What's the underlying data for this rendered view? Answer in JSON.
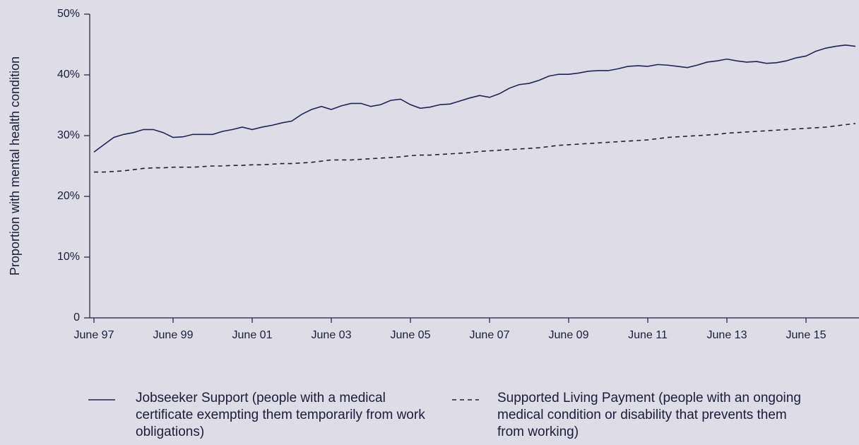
{
  "chart_data": {
    "type": "line",
    "y_label": "Proportion with mental health condition",
    "categories": [
      "June 97",
      null,
      null,
      null,
      null,
      null,
      null,
      null,
      "June 99",
      null,
      null,
      null,
      null,
      null,
      null,
      null,
      "June 01",
      null,
      null,
      null,
      null,
      null,
      null,
      null,
      "June 03",
      null,
      null,
      null,
      null,
      null,
      null,
      null,
      "June 05",
      null,
      null,
      null,
      null,
      null,
      null,
      null,
      "June 07",
      null,
      null,
      null,
      null,
      null,
      null,
      null,
      "June 09",
      null,
      null,
      null,
      null,
      null,
      null,
      null,
      "June 11",
      null,
      null,
      null,
      null,
      null,
      null,
      null,
      "June 13",
      null,
      null,
      null,
      null,
      null,
      null,
      null,
      "June 15",
      null,
      null,
      null,
      null,
      null
    ],
    "series": [
      {
        "name": "Jobseeker Support (people with a medical certificate exempting them temporarily from work obligations)",
        "color": "#1f2356",
        "style": "solid",
        "values": [
          27.3,
          28.5,
          29.7,
          30.2,
          30.5,
          31.0,
          31.0,
          30.5,
          29.7,
          29.8,
          30.2,
          30.2,
          30.2,
          30.7,
          31.0,
          31.4,
          31.0,
          31.4,
          31.7,
          32.1,
          32.4,
          33.5,
          34.3,
          34.8,
          34.3,
          34.9,
          35.3,
          35.3,
          34.8,
          35.1,
          35.8,
          36.0,
          35.1,
          34.5,
          34.7,
          35.1,
          35.2,
          35.7,
          36.2,
          36.6,
          36.3,
          36.9,
          37.8,
          38.4,
          38.6,
          39.1,
          39.8,
          40.1,
          40.1,
          40.3,
          40.6,
          40.7,
          40.7,
          41.0,
          41.4,
          41.5,
          41.4,
          41.7,
          41.6,
          41.4,
          41.2,
          41.6,
          42.1,
          42.3,
          42.6,
          42.3,
          42.1,
          42.2,
          41.9,
          42.0,
          42.3,
          42.8,
          43.1,
          43.9,
          44.4,
          44.7,
          44.9,
          44.7
        ]
      },
      {
        "name": "Supported Living Payment (people with an ongoing medical condition or disability that prevents them from working)",
        "color": "#222222",
        "style": "dashed",
        "values": [
          24.0,
          24.0,
          24.1,
          24.2,
          24.4,
          24.6,
          24.7,
          24.7,
          24.8,
          24.8,
          24.8,
          24.9,
          25.0,
          25.0,
          25.1,
          25.1,
          25.2,
          25.2,
          25.3,
          25.4,
          25.4,
          25.5,
          25.6,
          25.8,
          26.0,
          26.0,
          26.0,
          26.1,
          26.2,
          26.3,
          26.4,
          26.5,
          26.7,
          26.8,
          26.8,
          26.9,
          27.0,
          27.1,
          27.2,
          27.4,
          27.5,
          27.6,
          27.7,
          27.8,
          27.9,
          28.0,
          28.2,
          28.4,
          28.5,
          28.6,
          28.7,
          28.8,
          28.9,
          29.0,
          29.1,
          29.2,
          29.3,
          29.5,
          29.7,
          29.8,
          29.9,
          30.0,
          30.1,
          30.2,
          30.4,
          30.5,
          30.6,
          30.7,
          30.8,
          30.9,
          31.0,
          31.1,
          31.2,
          31.3,
          31.4,
          31.6,
          31.8,
          32.0
        ]
      }
    ],
    "ylim": [
      0,
      50
    ],
    "yticks": [
      0,
      {
        "value": 10,
        "label": "10%"
      },
      {
        "value": 20,
        "label": "20%"
      },
      {
        "value": 30,
        "label": "30%"
      },
      {
        "value": 40,
        "label": "40%"
      },
      {
        "value": 50,
        "label": "50%"
      }
    ],
    "grid": false,
    "legend": "bottom"
  }
}
